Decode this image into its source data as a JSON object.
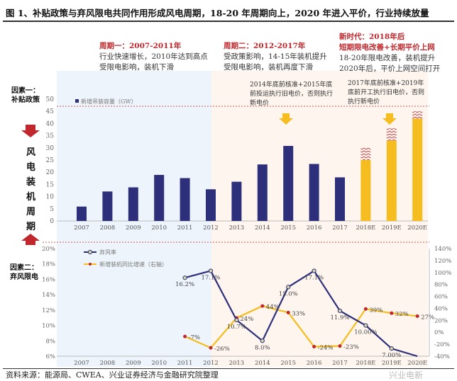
{
  "title": "图 1、补贴政策与弃风限电共同作用形成风电周期，18-20 年周期向上，2020 年进入平价，行业持续放量",
  "periods": [
    {
      "heading": "周期一：2007-2011年",
      "lines": [
        "行业快速增长，2010年达到高点",
        "受限电影响，装机下滑"
      ]
    },
    {
      "heading": "周期二：2012-2017年",
      "lines": [
        "受政策影响，14-15年装机提升",
        "受限电影响，装机再度下滑"
      ]
    },
    {
      "heading": "新时代：2018年后",
      "heading2": "短期限电改善+长期平价上网",
      "lines": [
        "18-20年限电改善，装机提升",
        "2020年后，平价上网空间打开"
      ]
    }
  ],
  "side": {
    "factor1": "因素一：",
    "factor1b": "补贴政策",
    "cycle": "风电装机周期",
    "factor2": "因素二：",
    "factor2b": "弃风限电"
  },
  "notes": {
    "n2015": "2014年底前核准+2015年底前投运执行旧电价，否则执行新电价",
    "n2019": "2017年底前核准+2019年底前开工执行旧电价，否则执行新电价"
  },
  "source": "资料来源：能源局、CWEA、兴业证券经济与金融研究院整理",
  "watermark": "兴业电新",
  "colors": {
    "bar": "#2e2f7a",
    "bar_forecast": "#f5bd1f",
    "curtail": "#2e2f7a",
    "growth": "#f5bd1f",
    "accent": "#c0282d",
    "bg_cycle1": "#eef4fb",
    "bg_cycle2": "#fdf5ee"
  },
  "chart_data": [
    {
      "type": "bar",
      "categories": [
        "2007",
        "2008",
        "2009",
        "2010",
        "2011",
        "2012",
        "2013",
        "2014",
        "2015",
        "2016",
        "2017",
        "2018E",
        "2019E",
        "2020E"
      ],
      "series": [
        {
          "name": "新增吊装容量（GW）",
          "values": [
            5.9,
            12.1,
            13.8,
            18.9,
            17.6,
            13.0,
            16.1,
            23.2,
            30.8,
            23.4,
            17.9,
            25,
            33,
            42
          ]
        }
      ],
      "upside_range_top": [
        null,
        null,
        null,
        null,
        null,
        null,
        null,
        null,
        null,
        null,
        null,
        30,
        38,
        45
      ],
      "ylim": [
        0,
        50
      ],
      "yticks": [
        "0",
        "5",
        "10",
        "15",
        "20",
        "25",
        "30",
        "35",
        "40",
        "45",
        "50"
      ],
      "legend": "top-left"
    },
    {
      "type": "line",
      "categories": [
        "2007",
        "2008",
        "2009",
        "2010",
        "2011",
        "2012",
        "2013",
        "2014",
        "2015",
        "2016",
        "2017",
        "2018E",
        "2019E",
        "2020E"
      ],
      "series": [
        {
          "name": "弃风率",
          "axis": "left",
          "values": [
            null,
            null,
            null,
            null,
            16.2,
            17.1,
            10.7,
            8.0,
            15.0,
            17.1,
            11.9,
            10.0,
            7.0,
            5.6
          ],
          "labels": [
            "",
            "",
            "",
            "",
            "16.2%",
            "17.1%",
            "10.7%",
            "8.0%",
            "15.0%",
            "17.1%",
            "11.9%",
            "10.00%",
            "7.00%",
            ""
          ]
        },
        {
          "name": "新增装机同比增速（右轴）",
          "axis": "right",
          "values": [
            null,
            null,
            null,
            null,
            -7,
            -26,
            24,
            44,
            33,
            -24,
            -23,
            39,
            32,
            27
          ],
          "labels": [
            "",
            "",
            "",
            "",
            "-7%",
            "-26%",
            "24%",
            "44%",
            "33%",
            "-24%",
            "-23%",
            "39%",
            "32%",
            "27%"
          ]
        }
      ],
      "ylim_left": [
        6,
        20
      ],
      "yticks_left": [
        "6%",
        "8%",
        "10%",
        "12%",
        "14%",
        "16%",
        "18%",
        "20%"
      ],
      "ylim_right": [
        -40,
        140
      ],
      "yticks_right": [
        "-40%",
        "-20%",
        "0%",
        "20%",
        "40%",
        "60%",
        "80%",
        "100%",
        "120%",
        "140%"
      ],
      "legend": "top-left"
    }
  ]
}
